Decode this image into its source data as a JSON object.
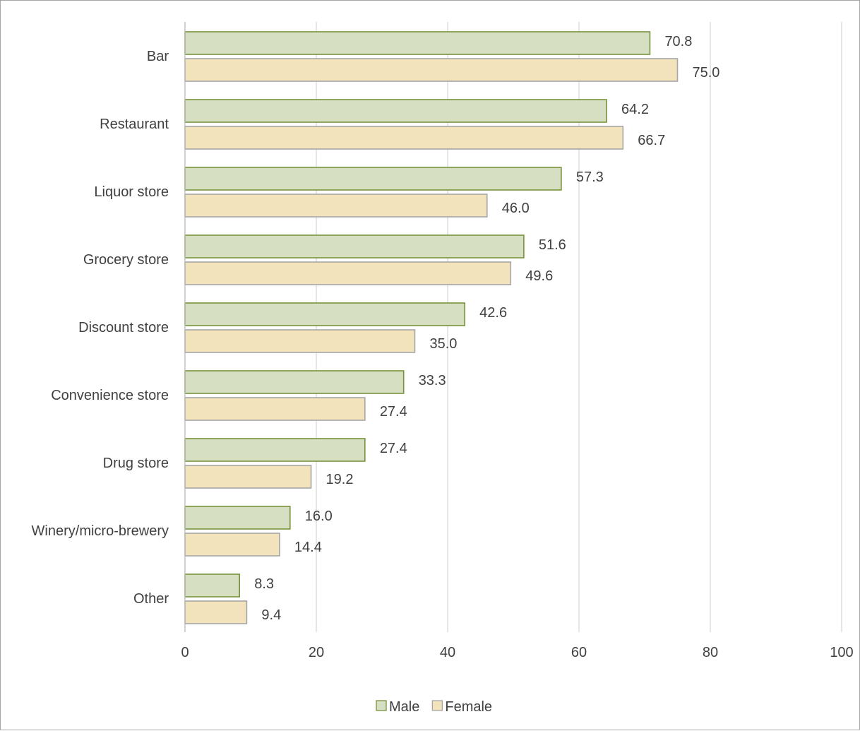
{
  "chart_data": {
    "type": "bar",
    "orientation": "horizontal",
    "categories": [
      "Bar",
      "Restaurant",
      "Liquor store",
      "Grocery store",
      "Discount store",
      "Convenience store",
      "Drug store",
      "Winery/micro-brewery",
      "Other"
    ],
    "series": [
      {
        "name": "Male",
        "values": [
          70.8,
          64.2,
          57.3,
          51.6,
          42.6,
          33.3,
          27.4,
          16.0,
          8.3
        ],
        "fill": "#d7dfc3",
        "stroke": "#77933c"
      },
      {
        "name": "Female",
        "values": [
          75.0,
          66.7,
          46.0,
          49.6,
          35.0,
          27.4,
          19.2,
          14.4,
          9.4
        ],
        "fill": "#f2e3bc",
        "stroke": "#a6a6a6"
      }
    ],
    "xlim": [
      0,
      100
    ],
    "xticks": [
      0,
      20,
      40,
      60,
      80,
      100
    ],
    "grid": true,
    "legend_position": "bottom",
    "data_label_format": "one-decimal"
  }
}
